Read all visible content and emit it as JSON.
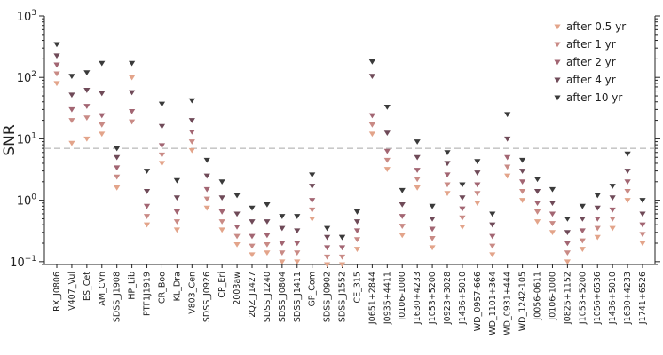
{
  "chart_data": {
    "type": "scatter",
    "ylabel": "SNR",
    "xlabel": "",
    "title": "",
    "yscale": "log",
    "ylim": [
      0.09,
      1000
    ],
    "ytick_labels": [
      {
        "value": 0.1,
        "base": "10",
        "exp": "−1"
      },
      {
        "value": 1,
        "base": "10",
        "exp": "0"
      },
      {
        "value": 10,
        "base": "10",
        "exp": "1"
      },
      {
        "value": 100,
        "base": "10",
        "exp": "2"
      },
      {
        "value": 1000,
        "base": "10",
        "exp": "3"
      }
    ],
    "threshold": {
      "value": 7,
      "style": "dashed"
    },
    "marker": "triangle-down",
    "legend_position": "top-right",
    "categories": [
      "RX_J0806",
      "V407_Vul",
      "ES_Cet",
      "AM_CVn",
      "SDSS_J1908",
      "HP_Lib",
      "PTF1J1919",
      "CR_Boo",
      "KL_Dra",
      "V803_Cen",
      "SDSS_J0926",
      "CP_Eri",
      "2003aw",
      "2QZ_J1427",
      "SDSS_J1240",
      "SDSS_J0804",
      "SDSS_J1411",
      "GP_Com",
      "SDSS_J0902",
      "SDSS_J1552",
      "CE_315",
      "J0651+2844",
      "J0935+4411",
      "J0106-1000",
      "J1630+4233",
      "J1053+5200",
      "J0923+3028",
      "J1436+5010",
      "WD_0957-666",
      "WD_1101+364",
      "WD_0931+444",
      "WD_1242-105",
      "J0056-0611",
      "J0106-1000",
      "J0825+1152",
      "J1053+5200",
      "J1056+6536",
      "J1436+5010",
      "J1630+4233",
      "J1741+6526"
    ],
    "series": [
      {
        "name": "after 0.5 yr",
        "color": "#e3a48a",
        "values": [
          80,
          8.5,
          10,
          12,
          1.6,
          100,
          0.4,
          4,
          0.33,
          6.5,
          0.75,
          0.33,
          0.19,
          0.13,
          0.14,
          0.1,
          0.1,
          0.5,
          0.09,
          0.09,
          0.16,
          12,
          3.2,
          0.27,
          1.6,
          0.17,
          1.3,
          0.37,
          0.9,
          0.13,
          2.5,
          1.0,
          0.45,
          0.3,
          0.1,
          0.16,
          0.25,
          0.35,
          1.0,
          0.2
        ]
      },
      {
        "name": "after 1 yr",
        "color": "#c98a85",
        "values": [
          115,
          20,
          22,
          17,
          2.4,
          19,
          0.55,
          5.5,
          0.45,
          9,
          1.05,
          0.45,
          0.26,
          0.18,
          0.19,
          0.14,
          0.14,
          0.7,
          0.12,
          0.12,
          0.23,
          17,
          4.5,
          0.38,
          2.2,
          0.24,
          1.8,
          0.52,
          1.3,
          0.18,
          3.5,
          1.4,
          0.65,
          0.42,
          0.14,
          0.22,
          0.35,
          0.5,
          1.4,
          0.28
        ]
      },
      {
        "name": "after 2 yr",
        "color": "#a26572",
        "values": [
          160,
          30,
          34,
          24,
          3.4,
          28,
          0.8,
          7.8,
          0.65,
          13,
          1.5,
          0.65,
          0.37,
          0.26,
          0.27,
          0.2,
          0.2,
          1.0,
          0.17,
          0.17,
          0.32,
          24,
          6.3,
          0.55,
          3.1,
          0.34,
          2.6,
          0.73,
          1.8,
          0.26,
          5,
          2.0,
          0.9,
          0.6,
          0.2,
          0.32,
          0.5,
          0.7,
          2.0,
          0.4
        ]
      },
      {
        "name": "after 4 yr",
        "color": "#6f4a58",
        "values": [
          225,
          52,
          62,
          55,
          5,
          57,
          1.4,
          16,
          1.1,
          20,
          2.5,
          1.1,
          0.6,
          0.45,
          0.45,
          0.35,
          0.32,
          1.7,
          0.25,
          0.25,
          0.45,
          105,
          12.5,
          0.85,
          5,
          0.5,
          4,
          1.1,
          2.8,
          0.4,
          10,
          3.0,
          1.4,
          0.9,
          0.3,
          0.5,
          0.75,
          1.1,
          3.0,
          0.6
        ]
      },
      {
        "name": "after 10 yr",
        "color": "#3a3a3a",
        "values": [
          345,
          105,
          120,
          170,
          7,
          170,
          3,
          37,
          2.1,
          42,
          4.5,
          2,
          1.2,
          0.75,
          0.85,
          0.55,
          0.55,
          2.6,
          0.35,
          0.25,
          0.65,
          180,
          33,
          1.45,
          9,
          0.8,
          6,
          1.8,
          4.3,
          0.6,
          25,
          4.5,
          2.2,
          1.5,
          0.5,
          0.8,
          1.2,
          1.7,
          5.7,
          1.0
        ]
      }
    ]
  }
}
